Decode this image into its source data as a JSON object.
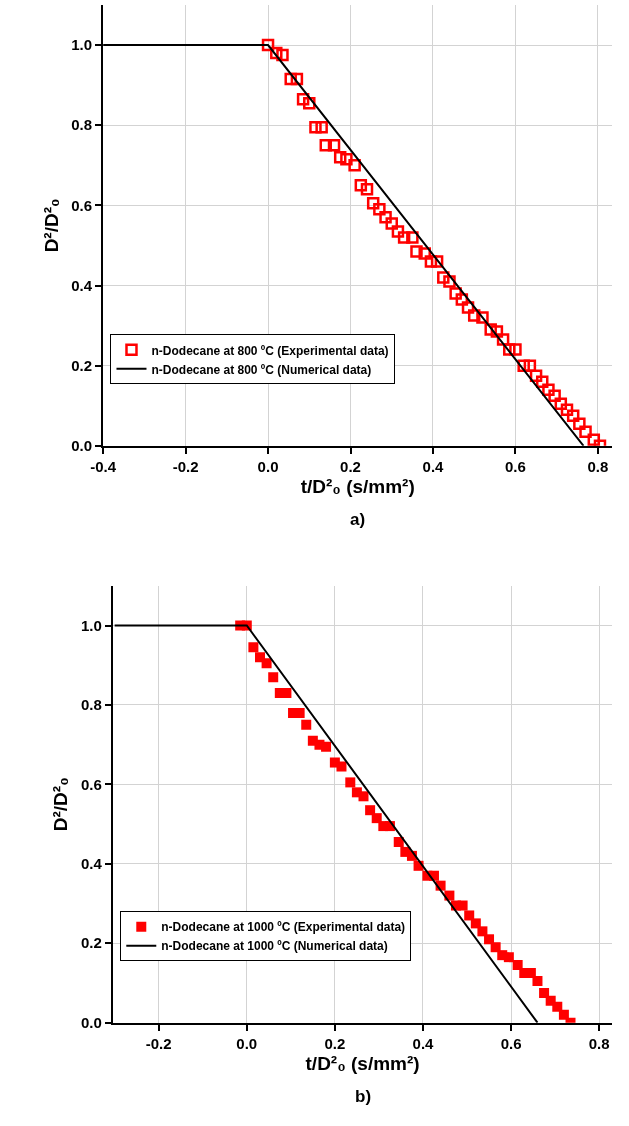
{
  "chart_data": [
    {
      "type": "scatter",
      "xlabel": "t/D²₀ (s/mm²)",
      "ylabel": "D²/D²₀",
      "annotations": [
        "a)"
      ],
      "xlim": [
        -0.4,
        0.835
      ],
      "ylim": [
        0,
        1.1
      ],
      "xticks": [
        {
          "value": -0.4,
          "label": "-0.4"
        },
        {
          "value": -0.2,
          "label": "-0.2"
        },
        {
          "value": 0,
          "label": "0.0"
        },
        {
          "value": 0.2,
          "label": "0.2"
        },
        {
          "value": 0.4,
          "label": "0.4"
        },
        {
          "value": 0.6,
          "label": "0.6"
        },
        {
          "value": 0.8,
          "label": "0.8"
        }
      ],
      "yticks": [
        {
          "value": 0,
          "label": "0.0"
        },
        {
          "value": 0.2,
          "label": "0.2"
        },
        {
          "value": 0.4,
          "label": "0.4"
        },
        {
          "value": 0.6,
          "label": "0.6"
        },
        {
          "value": 0.8,
          "label": "0.8"
        },
        {
          "value": 1,
          "label": "1.0"
        }
      ],
      "grid": true,
      "legend": "bottom left",
      "series": [
        {
          "name": "n-Dodecane at 800 ºC (Experimental data)",
          "marker": "square-open",
          "color": "#ff0000",
          "x": [
            0.0,
            0.02,
            0.035,
            0.055,
            0.07,
            0.085,
            0.1,
            0.115,
            0.13,
            0.14,
            0.16,
            0.175,
            0.19,
            0.21,
            0.225,
            0.24,
            0.255,
            0.27,
            0.285,
            0.3,
            0.315,
            0.33,
            0.35,
            0.36,
            0.38,
            0.395,
            0.41,
            0.425,
            0.44,
            0.455,
            0.47,
            0.485,
            0.5,
            0.52,
            0.54,
            0.555,
            0.57,
            0.585,
            0.6,
            0.62,
            0.635,
            0.65,
            0.665,
            0.68,
            0.695,
            0.71,
            0.725,
            0.74,
            0.755,
            0.77,
            0.79,
            0.805
          ],
          "values": [
            1.0,
            0.98,
            0.975,
            0.915,
            0.915,
            0.865,
            0.855,
            0.795,
            0.795,
            0.75,
            0.75,
            0.72,
            0.715,
            0.7,
            0.65,
            0.64,
            0.605,
            0.59,
            0.57,
            0.555,
            0.535,
            0.52,
            0.52,
            0.485,
            0.48,
            0.46,
            0.46,
            0.42,
            0.41,
            0.38,
            0.365,
            0.345,
            0.325,
            0.32,
            0.29,
            0.285,
            0.265,
            0.24,
            0.24,
            0.2,
            0.2,
            0.175,
            0.16,
            0.14,
            0.125,
            0.105,
            0.09,
            0.075,
            0.055,
            0.035,
            0.015,
            0.0
          ]
        },
        {
          "name": "n-Dodecane at 800 ºC (Numerical data)",
          "type": "line",
          "marker": "none",
          "line_style": "solid",
          "color": "#000000",
          "x": [
            -0.4,
            0.0,
            0.765
          ],
          "values": [
            1.0,
            1.0,
            0.0
          ]
        }
      ]
    },
    {
      "type": "scatter",
      "xlabel": "t/D²₀ (s/mm²)",
      "ylabel": "D²/D²₀",
      "annotations": [
        "b)"
      ],
      "xlim": [
        -0.304,
        0.83
      ],
      "ylim": [
        0,
        1.1
      ],
      "xticks": [
        {
          "value": -0.2,
          "label": "-0.2"
        },
        {
          "value": 0,
          "label": "0.0"
        },
        {
          "value": 0.2,
          "label": "0.2"
        },
        {
          "value": 0.4,
          "label": "0.4"
        },
        {
          "value": 0.6,
          "label": "0.6"
        },
        {
          "value": 0.8,
          "label": "0.8"
        }
      ],
      "yticks": [
        {
          "value": 0,
          "label": "0.0"
        },
        {
          "value": 0.2,
          "label": "0.2"
        },
        {
          "value": 0.4,
          "label": "0.4"
        },
        {
          "value": 0.6,
          "label": "0.6"
        },
        {
          "value": 0.8,
          "label": "0.8"
        },
        {
          "value": 1,
          "label": "1.0"
        }
      ],
      "grid": true,
      "legend": "bottom left",
      "series": [
        {
          "name": "n-Dodecane at 1000 ºC (Experimental data)",
          "marker": "square",
          "color": "#ff0000",
          "x": [
            -0.015,
            0.0,
            0.015,
            0.03,
            0.045,
            0.06,
            0.075,
            0.09,
            0.105,
            0.12,
            0.135,
            0.15,
            0.165,
            0.18,
            0.2,
            0.215,
            0.235,
            0.25,
            0.265,
            0.28,
            0.295,
            0.31,
            0.325,
            0.345,
            0.36,
            0.375,
            0.39,
            0.41,
            0.425,
            0.44,
            0.46,
            0.475,
            0.49,
            0.505,
            0.52,
            0.535,
            0.55,
            0.565,
            0.58,
            0.595,
            0.615,
            0.63,
            0.645,
            0.66,
            0.675,
            0.69,
            0.705,
            0.72,
            0.735
          ],
          "values": [
            1.0,
            1.0,
            0.945,
            0.92,
            0.905,
            0.87,
            0.83,
            0.83,
            0.78,
            0.78,
            0.75,
            0.71,
            0.7,
            0.695,
            0.655,
            0.645,
            0.605,
            0.58,
            0.57,
            0.535,
            0.515,
            0.495,
            0.495,
            0.455,
            0.43,
            0.42,
            0.395,
            0.37,
            0.37,
            0.345,
            0.32,
            0.295,
            0.295,
            0.27,
            0.25,
            0.23,
            0.21,
            0.19,
            0.17,
            0.165,
            0.145,
            0.125,
            0.125,
            0.105,
            0.075,
            0.055,
            0.04,
            0.02,
            0.0
          ]
        },
        {
          "name": "n-Dodecane at 1000 ºC (Numerical data)",
          "type": "line",
          "marker": "none",
          "line_style": "solid",
          "color": "#000000",
          "x": [
            -0.3,
            0.0,
            0.66
          ],
          "values": [
            1.0,
            1.0,
            0.0
          ]
        }
      ]
    }
  ]
}
